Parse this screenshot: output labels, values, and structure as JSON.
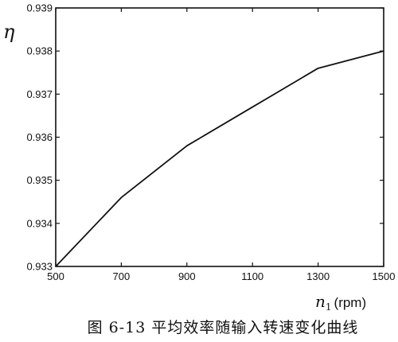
{
  "chart_data": {
    "type": "line",
    "x": [
      500,
      700,
      900,
      1100,
      1300,
      1500
    ],
    "series": [
      {
        "values": [
          0.933,
          0.9346,
          0.9358,
          0.9367,
          0.9376,
          0.938
        ]
      }
    ],
    "xlim": [
      500,
      1500
    ],
    "ylim": [
      0.933,
      0.939
    ],
    "xticks": [
      "500",
      "700",
      "900",
      "1100",
      "1300",
      "1500"
    ],
    "yticks": [
      "0.933",
      "0.934",
      "0.935",
      "0.936",
      "0.937",
      "0.938",
      "0.939"
    ],
    "ylabel": "η",
    "xlabel_symbol": "n",
    "xlabel_subscript": "1",
    "xlabel_unit": "(rpm)",
    "grid": false,
    "line_color": "#111111",
    "frame_color": "#111111"
  },
  "caption": "图 6-13  平均效率随输入转速变化曲线"
}
